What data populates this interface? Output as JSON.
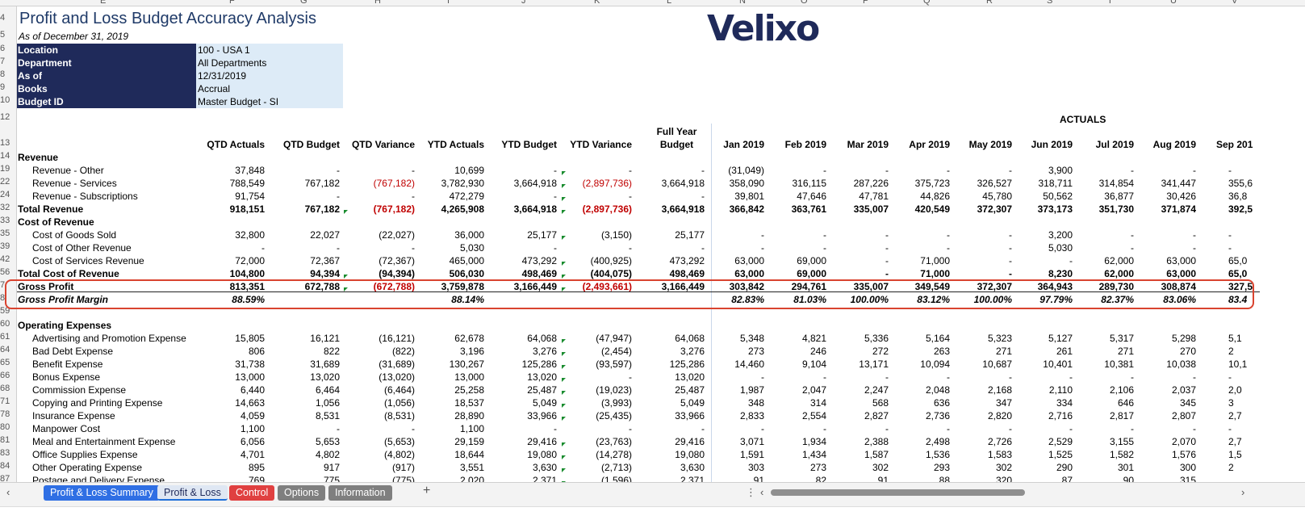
{
  "column_letters": [
    "E",
    "F",
    "G",
    "H",
    "I",
    "J",
    "K",
    "L",
    "N",
    "O",
    "P",
    "Q",
    "R",
    "S",
    "T",
    "U",
    "V"
  ],
  "row_numbers": [
    "4",
    "5",
    "6",
    "7",
    "8",
    "9",
    "10",
    "12",
    "13",
    "14",
    "19",
    "22",
    "24",
    "32",
    "33",
    "35",
    "39",
    "42",
    "56",
    "7",
    "8",
    "59",
    "60",
    "61",
    "64",
    "65",
    "66",
    "68",
    "71",
    "78",
    "80",
    "81",
    "83",
    "84",
    "87"
  ],
  "title": "Profit and Loss Budget Accuracy Analysis",
  "subtitle": "As of December 31, 2019",
  "logo": "Velixo",
  "params": [
    {
      "label": "Location",
      "value": "100 - USA 1"
    },
    {
      "label": "Department",
      "value": "All Departments"
    },
    {
      "label": "As of",
      "value": "12/31/2019"
    },
    {
      "label": "Books",
      "value": "Accrual"
    },
    {
      "label": "Budget ID",
      "value": "Master Budget - SI"
    }
  ],
  "actuals_label": "ACTUALS",
  "headers": [
    "QTD Actuals",
    "QTD Budget",
    "QTD Variance",
    "YTD Actuals",
    "YTD Budget",
    "YTD Variance",
    "Full Year",
    "Budget",
    "Jan 2019",
    "Feb 2019",
    "Mar 2019",
    "Apr 2019",
    "May 2019",
    "Jun 2019",
    "Jul 2019",
    "Aug 2019",
    "Sep 201"
  ],
  "rows": [
    {
      "label": "Revenue",
      "style": "section",
      "v": []
    },
    {
      "label": "Revenue - Other",
      "style": "item",
      "v": [
        "37,848",
        "-",
        "-",
        "10,699",
        "-",
        "-",
        "-",
        "(31,049)",
        "-",
        "-",
        "-",
        "-",
        "3,900",
        "-",
        "-",
        "-"
      ]
    },
    {
      "label": "Revenue - Services",
      "style": "item",
      "v": [
        "788,549",
        "767,182",
        "(767,182)",
        "3,782,930",
        "3,664,918",
        "(2,897,736)",
        "3,664,918",
        "358,090",
        "316,115",
        "287,226",
        "375,723",
        "326,527",
        "318,711",
        "314,854",
        "341,447",
        "355,6"
      ]
    },
    {
      "label": "Revenue - Subscriptions",
      "style": "item",
      "v": [
        "91,754",
        "-",
        "-",
        "472,279",
        "-",
        "-",
        "-",
        "39,801",
        "47,646",
        "47,781",
        "44,826",
        "45,780",
        "50,562",
        "36,877",
        "30,426",
        "36,8"
      ]
    },
    {
      "label": "Total Revenue",
      "style": "total",
      "v": [
        "918,151",
        "767,182",
        "(767,182)",
        "4,265,908",
        "3,664,918",
        "(2,897,736)",
        "3,664,918",
        "366,842",
        "363,761",
        "335,007",
        "420,549",
        "372,307",
        "373,173",
        "351,730",
        "371,874",
        "392,5"
      ]
    },
    {
      "label": "Cost of Revenue",
      "style": "section",
      "v": []
    },
    {
      "label": "Cost of Goods Sold",
      "style": "item",
      "v": [
        "32,800",
        "22,027",
        "(22,027)",
        "36,000",
        "25,177",
        "(3,150)",
        "25,177",
        "-",
        "-",
        "-",
        "-",
        "-",
        "3,200",
        "-",
        "-",
        "-"
      ]
    },
    {
      "label": "Cost of Other Revenue",
      "style": "item",
      "v": [
        "-",
        "-",
        "-",
        "5,030",
        "-",
        "-",
        "-",
        "-",
        "-",
        "-",
        "-",
        "-",
        "5,030",
        "-",
        "-",
        "-"
      ]
    },
    {
      "label": "Cost of Services Revenue",
      "style": "item",
      "v": [
        "72,000",
        "72,367",
        "(72,367)",
        "465,000",
        "473,292",
        "(400,925)",
        "473,292",
        "63,000",
        "69,000",
        "-",
        "71,000",
        "-",
        "-",
        "62,000",
        "63,000",
        "65,0"
      ]
    },
    {
      "label": "Total Cost of Revenue",
      "style": "total",
      "v": [
        "104,800",
        "94,394",
        "(94,394)",
        "506,030",
        "498,469",
        "(404,075)",
        "498,469",
        "63,000",
        "69,000",
        "-",
        "71,000",
        "-",
        "8,230",
        "62,000",
        "63,000",
        "65,0"
      ]
    },
    {
      "label": "Gross Profit",
      "style": "total",
      "v": [
        "813,351",
        "672,788",
        "(672,788)",
        "3,759,878",
        "3,166,449",
        "(2,493,661)",
        "3,166,449",
        "303,842",
        "294,761",
        "335,007",
        "349,549",
        "372,307",
        "364,943",
        "289,730",
        "308,874",
        "327,5"
      ]
    },
    {
      "label": "Gross Profit Margin",
      "style": "margin",
      "v": [
        "88.59%",
        "",
        "",
        "88.14%",
        "",
        "",
        "",
        "82.83%",
        "81.03%",
        "100.00%",
        "83.12%",
        "100.00%",
        "97.79%",
        "82.37%",
        "83.06%",
        "83.4"
      ]
    },
    {
      "label": "",
      "style": "blank",
      "v": []
    },
    {
      "label": "Operating Expenses",
      "style": "section",
      "v": []
    },
    {
      "label": "Advertising and Promotion Expense",
      "style": "item",
      "v": [
        "15,805",
        "16,121",
        "(16,121)",
        "62,678",
        "64,068",
        "(47,947)",
        "64,068",
        "5,348",
        "4,821",
        "5,336",
        "5,164",
        "5,323",
        "5,127",
        "5,317",
        "5,298",
        "5,1"
      ]
    },
    {
      "label": "Bad Debt Expense",
      "style": "item",
      "v": [
        "806",
        "822",
        "(822)",
        "3,196",
        "3,276",
        "(2,454)",
        "3,276",
        "273",
        "246",
        "272",
        "263",
        "271",
        "261",
        "271",
        "270",
        "2"
      ]
    },
    {
      "label": "Benefit Expense",
      "style": "item",
      "v": [
        "31,738",
        "31,689",
        "(31,689)",
        "130,267",
        "125,286",
        "(93,597)",
        "125,286",
        "14,460",
        "9,104",
        "13,171",
        "10,094",
        "10,687",
        "10,401",
        "10,381",
        "10,038",
        "10,1"
      ]
    },
    {
      "label": "Bonus Expense",
      "style": "item",
      "v": [
        "13,000",
        "13,020",
        "(13,020)",
        "13,000",
        "13,020",
        "-",
        "13,020",
        "-",
        "-",
        "-",
        "-",
        "-",
        "-",
        "-",
        "-",
        "-"
      ]
    },
    {
      "label": "Commission Expense",
      "style": "item",
      "v": [
        "6,440",
        "6,464",
        "(6,464)",
        "25,258",
        "25,487",
        "(19,023)",
        "25,487",
        "1,987",
        "2,047",
        "2,247",
        "2,048",
        "2,168",
        "2,110",
        "2,106",
        "2,037",
        "2,0"
      ]
    },
    {
      "label": "Copying and Printing Expense",
      "style": "item",
      "v": [
        "14,663",
        "1,056",
        "(1,056)",
        "18,537",
        "5,049",
        "(3,993)",
        "5,049",
        "348",
        "314",
        "568",
        "636",
        "347",
        "334",
        "646",
        "345",
        "3"
      ]
    },
    {
      "label": "Insurance Expense",
      "style": "item",
      "v": [
        "4,059",
        "8,531",
        "(8,531)",
        "28,890",
        "33,966",
        "(25,435)",
        "33,966",
        "2,833",
        "2,554",
        "2,827",
        "2,736",
        "2,820",
        "2,716",
        "2,817",
        "2,807",
        "2,7"
      ]
    },
    {
      "label": "Manpower Cost",
      "style": "item",
      "v": [
        "1,100",
        "-",
        "-",
        "1,100",
        "-",
        "-",
        "-",
        "-",
        "-",
        "-",
        "-",
        "-",
        "-",
        "-",
        "-",
        "-"
      ]
    },
    {
      "label": "Meal and Entertainment Expense",
      "style": "item",
      "v": [
        "6,056",
        "5,653",
        "(5,653)",
        "29,159",
        "29,416",
        "(23,763)",
        "29,416",
        "3,071",
        "1,934",
        "2,388",
        "2,498",
        "2,726",
        "2,529",
        "3,155",
        "2,070",
        "2,7"
      ]
    },
    {
      "label": "Office Supplies Expense",
      "style": "item",
      "v": [
        "4,701",
        "4,802",
        "(4,802)",
        "18,644",
        "19,080",
        "(14,278)",
        "19,080",
        "1,591",
        "1,434",
        "1,587",
        "1,536",
        "1,583",
        "1,525",
        "1,582",
        "1,576",
        "1,5"
      ]
    },
    {
      "label": "Other Operating Expense",
      "style": "item",
      "v": [
        "895",
        "917",
        "(917)",
        "3,551",
        "3,630",
        "(2,713)",
        "3,630",
        "303",
        "273",
        "302",
        "293",
        "302",
        "290",
        "301",
        "300",
        "2"
      ]
    },
    {
      "label": "Postage and Delivery Expense",
      "style": "item",
      "v": [
        "769",
        "775",
        "(775)",
        "2,020",
        "2,371",
        "(1,596)",
        "2,371",
        "91",
        "82",
        "91",
        "88",
        "320",
        "87",
        "90",
        "315",
        ""
      ]
    }
  ],
  "tabs": [
    {
      "label": "Profit & Loss Summary",
      "color": "#2f6fe4"
    },
    {
      "label": "Profit & Loss",
      "color": "active"
    },
    {
      "label": "Control",
      "color": "#e04040"
    },
    {
      "label": "Options",
      "color": "#7f7f7f"
    },
    {
      "label": "Information",
      "color": "#7f7f7f"
    }
  ],
  "add_sheet": "+",
  "more": "⋮",
  "nav_left": "‹",
  "nav_right": "›"
}
